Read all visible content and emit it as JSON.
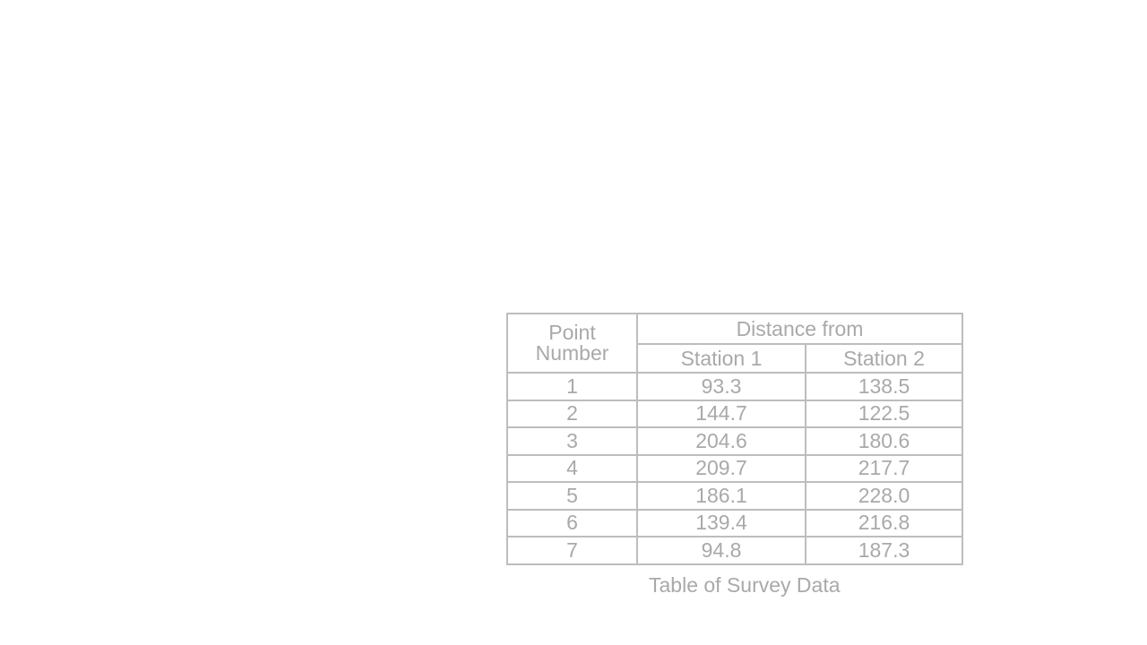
{
  "table": {
    "header_point_line1": "Point",
    "header_point_line2": "Number",
    "header_distance": "Distance from",
    "header_station1": "Station 1",
    "header_station2": "Station 2",
    "rows": [
      {
        "point": "1",
        "station1": "93.3",
        "station2": "138.5"
      },
      {
        "point": "2",
        "station1": "144.7",
        "station2": "122.5"
      },
      {
        "point": "3",
        "station1": "204.6",
        "station2": "180.6"
      },
      {
        "point": "4",
        "station1": "209.7",
        "station2": "217.7"
      },
      {
        "point": "5",
        "station1": "186.1",
        "station2": "228.0"
      },
      {
        "point": "6",
        "station1": "139.4",
        "station2": "216.8"
      },
      {
        "point": "7",
        "station1": "94.8",
        "station2": "187.3"
      }
    ]
  },
  "caption": "Table of Survey Data"
}
